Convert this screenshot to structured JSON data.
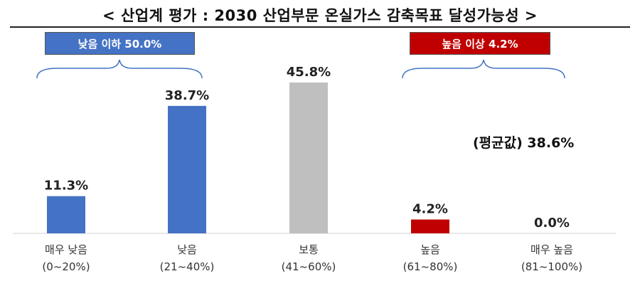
{
  "title": "< 산업계 평가 : 2030 산업부문 온실가스 감축목표 달성가능성 >",
  "badges": {
    "low": "낮음 이하 50.0%",
    "high": "높음 이상 4.2%"
  },
  "average": "(평균값) 38.6%",
  "colors": {
    "blue": "#4472C4",
    "gray": "#BFBFBF",
    "red": "#C00000"
  },
  "chart_data": {
    "type": "bar",
    "categories": [
      "매우 낮음",
      "낮음",
      "보통",
      "높음",
      "매우 높음"
    ],
    "ranges": [
      "(0~20%)",
      "(21~40%)",
      "(41~60%)",
      "(61~80%)",
      "(81~100%)"
    ],
    "values": [
      11.3,
      38.7,
      45.8,
      4.2,
      0.0
    ],
    "value_labels": [
      "11.3%",
      "38.7%",
      "45.8%",
      "4.2%",
      "0.0%"
    ],
    "bar_colors": [
      "#4472C4",
      "#4472C4",
      "#BFBFBF",
      "#C00000",
      "#C00000"
    ],
    "ylim": [
      0,
      50
    ]
  }
}
